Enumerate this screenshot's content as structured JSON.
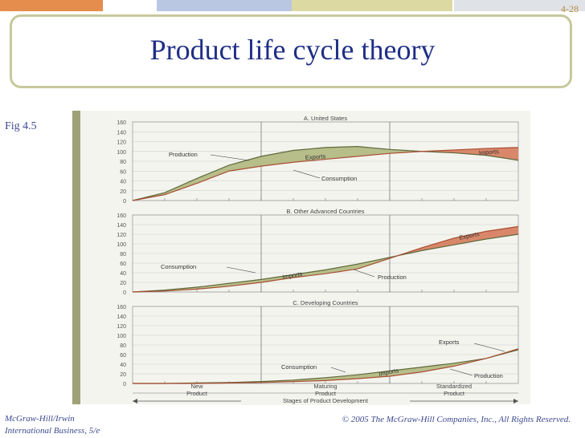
{
  "slide": {
    "number": "4-28",
    "title": "Product life cycle theory",
    "fig_label": "Fig 4.5",
    "footer": {
      "publisher": "McGraw-Hill/Irwin",
      "course": "International Business, 5/e",
      "copyright": "© 2005 The McGraw-Hill Companies, Inc., All Rights Reserved."
    }
  },
  "colors": {
    "title": "#1f2f86",
    "green_fill": "#b7be8a",
    "red_fill": "#d9876a",
    "curve": "#6b5a3a",
    "grid": "#c9c9c9",
    "side_band": "#9fa277"
  },
  "chart_data": [
    {
      "type": "area",
      "title": "A. United States",
      "ylim": [
        0,
        160
      ],
      "yticks": [
        "0",
        "20",
        "40",
        "60",
        "80",
        "100",
        "120",
        "140",
        "160"
      ],
      "x": [
        0,
        1,
        2,
        3,
        4,
        5,
        6,
        7,
        8,
        9,
        10,
        11,
        12
      ],
      "series": [
        {
          "name": "Production",
          "values": [
            0,
            16,
            45,
            72,
            90,
            102,
            108,
            110,
            104,
            100,
            97,
            92,
            82
          ]
        },
        {
          "name": "Consumption",
          "values": [
            0,
            12,
            35,
            60,
            70,
            78,
            84,
            90,
            96,
            100,
            103,
            106,
            108
          ]
        }
      ],
      "annotations": [
        "Production",
        "Exports",
        "Consumption",
        "Imports"
      ]
    },
    {
      "type": "area",
      "title": "B. Other Advanced Countries",
      "ylim": [
        0,
        160
      ],
      "yticks": [
        "0",
        "20",
        "40",
        "60",
        "80",
        "100",
        "120",
        "140",
        "160"
      ],
      "x": [
        0,
        1,
        2,
        3,
        4,
        5,
        6,
        7,
        8,
        9,
        10,
        11,
        12
      ],
      "series": [
        {
          "name": "Consumption",
          "values": [
            0,
            4,
            10,
            18,
            26,
            36,
            46,
            58,
            72,
            86,
            98,
            110,
            120
          ]
        },
        {
          "name": "Production",
          "values": [
            0,
            2,
            6,
            12,
            20,
            30,
            38,
            48,
            70,
            92,
            112,
            126,
            136
          ]
        }
      ],
      "annotations": [
        "Consumption",
        "Imports",
        "Production",
        "Exports"
      ]
    },
    {
      "type": "area",
      "title": "C. Developing Countries",
      "ylim": [
        0,
        160
      ],
      "yticks": [
        "0",
        "20",
        "40",
        "60",
        "80",
        "100",
        "120",
        "140",
        "160"
      ],
      "x": [
        0,
        1,
        2,
        3,
        4,
        5,
        6,
        7,
        8,
        9,
        10,
        11,
        12
      ],
      "series": [
        {
          "name": "Consumption",
          "values": [
            0,
            0,
            1,
            2,
            4,
            7,
            12,
            18,
            26,
            34,
            42,
            52,
            70
          ]
        },
        {
          "name": "Production",
          "values": [
            0,
            0,
            0,
            1,
            2,
            4,
            6,
            10,
            15,
            24,
            36,
            52,
            72
          ]
        }
      ],
      "annotations": [
        "Consumption",
        "Imports",
        "Exports",
        "Production"
      ]
    }
  ],
  "x_stages": {
    "stages": [
      "New Product",
      "Maturing Product",
      "Standardized Product"
    ],
    "axis_label": "Stages of Product Development"
  }
}
